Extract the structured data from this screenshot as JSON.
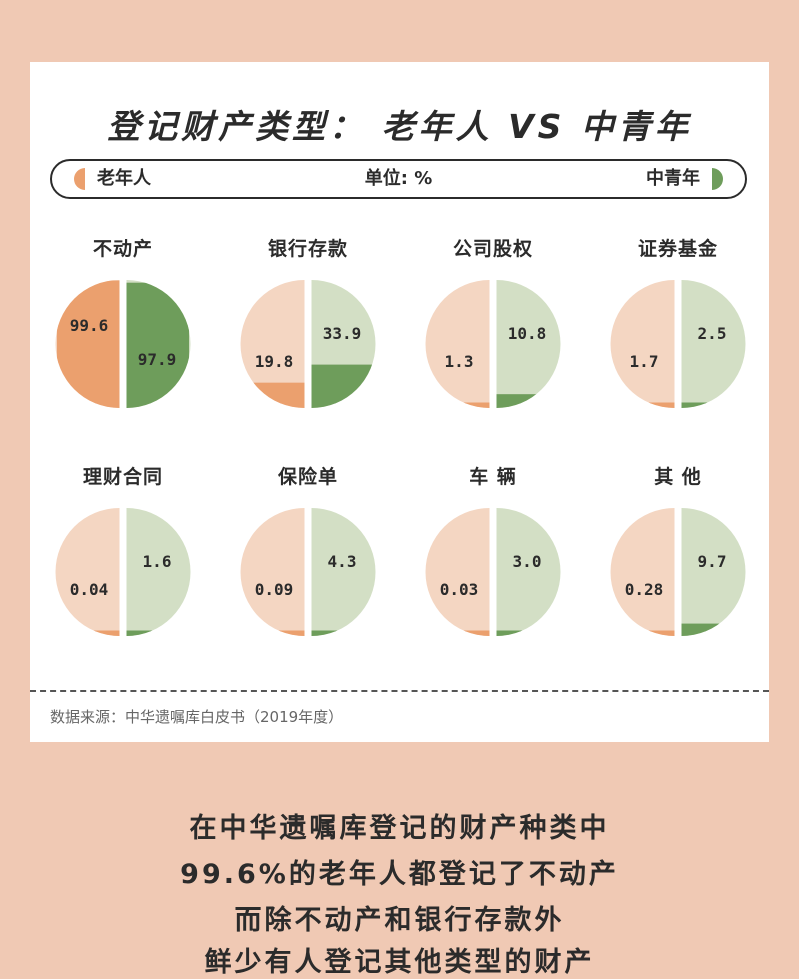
{
  "title": "登记财产类型：  老年人 VS 中青年",
  "legend": {
    "left": "老年人",
    "middle": "单位: %",
    "right": "中青年"
  },
  "colors": {
    "elder_full": "#eba06e",
    "elder_light": "#f4d6c2",
    "youth_full": "#6e9d5b",
    "youth_light": "#d3dfc5"
  },
  "chart_data": {
    "type": "pie",
    "unit": "%",
    "series_names": [
      "老年人",
      "中青年"
    ],
    "categories": [
      "不动产",
      "银行存款",
      "公司股权",
      "证券基金",
      "理财合同",
      "保险单",
      "车 辆",
      "其 他"
    ],
    "elder": [
      99.6,
      19.8,
      1.3,
      1.7,
      0.04,
      0.09,
      0.03,
      0.28
    ],
    "youth": [
      97.9,
      33.9,
      10.8,
      2.5,
      1.6,
      4.3,
      3.0,
      9.7
    ],
    "elder_labels": [
      "99.6",
      "19.8",
      "1.3",
      "1.7",
      "0.04",
      "0.09",
      "0.03",
      "0.28"
    ],
    "youth_labels": [
      "97.9",
      "33.9",
      "10.8",
      "2.5",
      "1.6",
      "4.3",
      "3.0",
      "9.7"
    ]
  },
  "source": "数据来源：中华遗嘱库白皮书（2019年度）",
  "caption": [
    "在中华遗嘱库登记的财产种类中",
    "99.6%的老年人都登记了不动产",
    "而除不动产和银行存款外",
    "鲜少有人登记其他类型的财产"
  ]
}
